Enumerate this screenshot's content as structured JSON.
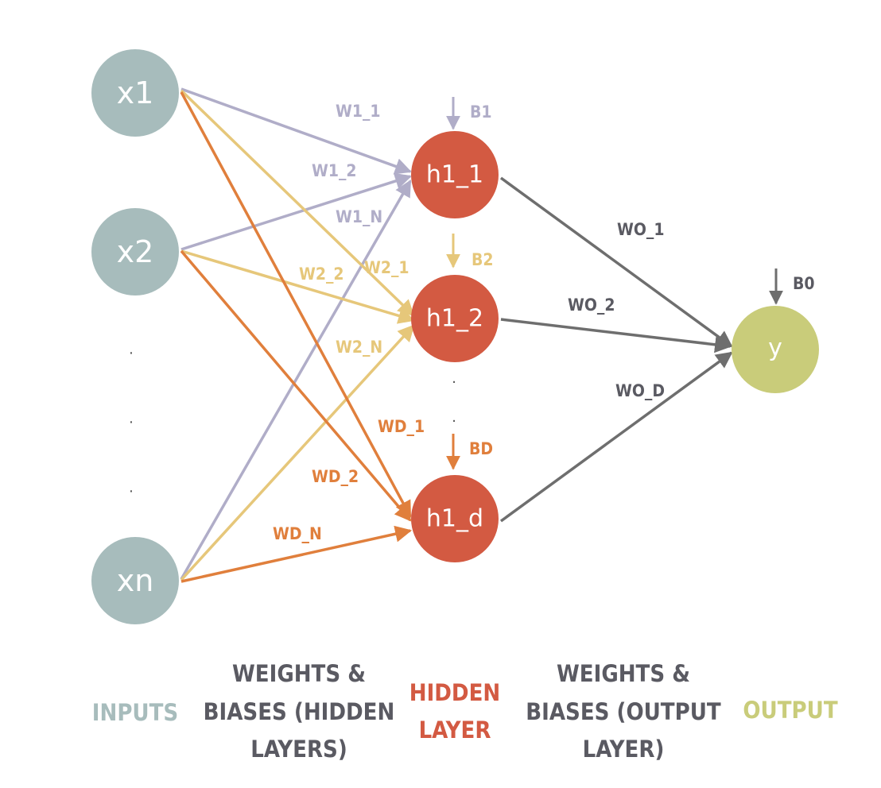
{
  "colors": {
    "input": "#a7bcbc",
    "hidden": "#d35a42",
    "output_node": "#c9cc7a",
    "w1": "#b0adc8",
    "w2": "#e6c77a",
    "wd": "#e07f3c",
    "wo": "#6e6e6e",
    "legend_dark": "#5a5a62"
  },
  "nodes": {
    "x1": "x1",
    "x2": "x2",
    "xn": "xn",
    "h1_1": "h1_1",
    "h1_2": "h1_2",
    "h1_d": "h1_d",
    "y": "y"
  },
  "edge_labels": {
    "w1_1": "W1_1",
    "w1_2": "W1_2",
    "w1_n": "W1_N",
    "w2_1": "W2_1",
    "w2_2": "W2_2",
    "w2_n": "W2_N",
    "wd_1": "WD_1",
    "wd_2": "WD_2",
    "wd_n": "WD_N",
    "wo_1": "WO_1",
    "wo_2": "WO_2",
    "wo_d": "WO_D"
  },
  "biases": {
    "b1": "B1",
    "b2": "B2",
    "bd": "BD",
    "b0": "B0"
  },
  "legend": {
    "inputs": "INPUTS",
    "weights_hidden": [
      "WEIGHTS &",
      "BIASES (HIDDEN",
      "LAYERS)"
    ],
    "hidden_layer": [
      "HIDDEN",
      "LAYER"
    ],
    "weights_output": [
      "WEIGHTS &",
      "BIASES (OUTPUT",
      "LAYER)"
    ],
    "output": "OUTPUT"
  },
  "ellipsis": {
    "input_dots": [
      "·",
      "·",
      "·"
    ],
    "hidden_dots": [
      ".",
      "."
    ]
  }
}
